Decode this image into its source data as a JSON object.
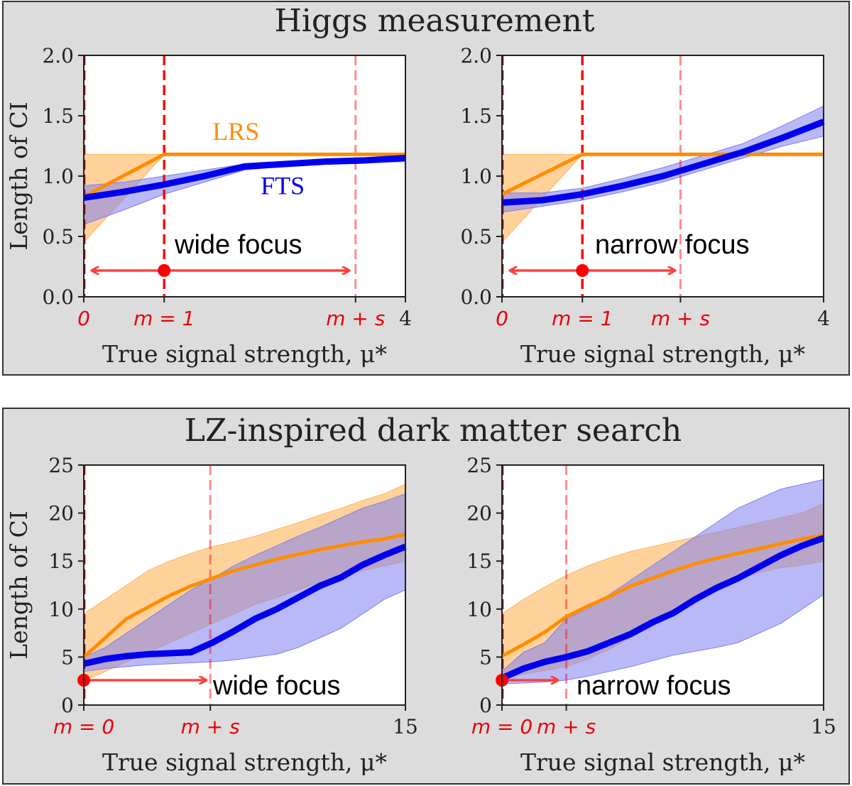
{
  "colors": {
    "lrs": "#ff8c00",
    "lrs_band": "#ffb45a",
    "fts": "#0000ee",
    "fts_band": "#7f7ff0",
    "marker": "#ff0000",
    "focus_line": "#ff0000",
    "arrow": "#ff4040"
  },
  "sections": [
    {
      "title": "Higgs measurement"
    },
    {
      "title": "LZ-inspired dark matter search"
    }
  ],
  "chart_data": [
    {
      "type": "line",
      "section": 0,
      "annotation": "wide focus",
      "xlim": [
        0,
        4
      ],
      "ylim": [
        0,
        2.0
      ],
      "yticks": [
        "0.0",
        "0.5",
        "1.0",
        "1.5",
        "2.0"
      ],
      "ylabel": "Length of CI",
      "xlabel": "True signal strength, μ*",
      "xticks": [
        {
          "x": 0,
          "label": "0",
          "red": true
        },
        {
          "x": 1,
          "label": "m = 1",
          "red": true
        },
        {
          "x": 3.38,
          "label": "m + s",
          "red": true
        },
        {
          "x": 4,
          "label": "4",
          "red": false
        }
      ],
      "focus": {
        "m": 1,
        "m_plus_s": 3.38,
        "arrow_left": 0.05,
        "arrow_right": 3.3
      },
      "series_labels": [
        {
          "name": "LRS",
          "x": 1.6,
          "y": 1.3
        },
        {
          "name": "FTS",
          "x": 2.2,
          "y": 0.85
        }
      ],
      "series": [
        {
          "name": "LRS",
          "x": [
            0,
            1,
            1.5,
            2,
            2.5,
            3,
            3.5,
            4
          ],
          "y": [
            0.83,
            1.18,
            1.18,
            1.18,
            1.18,
            1.18,
            1.18,
            1.18
          ],
          "band_low": [
            0.45,
            1.18,
            1.18,
            1.18,
            1.18,
            1.18,
            1.18,
            1.18
          ],
          "band_high": [
            1.18,
            1.18,
            1.18,
            1.18,
            1.18,
            1.18,
            1.18,
            1.18
          ]
        },
        {
          "name": "FTS",
          "x": [
            0,
            0.5,
            1,
            1.5,
            2,
            2.5,
            3,
            3.5,
            4
          ],
          "y": [
            0.82,
            0.87,
            0.93,
            1.0,
            1.08,
            1.1,
            1.12,
            1.13,
            1.15
          ],
          "band_low": [
            0.6,
            0.72,
            0.85,
            0.95,
            1.05,
            1.08,
            1.1,
            1.11,
            1.12
          ],
          "band_high": [
            0.92,
            0.95,
            1.0,
            1.05,
            1.1,
            1.12,
            1.14,
            1.15,
            1.17
          ]
        }
      ]
    },
    {
      "type": "line",
      "section": 0,
      "annotation": "narrow focus",
      "xlim": [
        0,
        4
      ],
      "ylim": [
        0,
        2.0
      ],
      "yticks": [
        "0.0",
        "0.5",
        "1.0",
        "1.5",
        "2.0"
      ],
      "ylabel": "",
      "xlabel": "True signal strength, μ*",
      "xticks": [
        {
          "x": 0,
          "label": "0",
          "red": true
        },
        {
          "x": 1,
          "label": "m = 1",
          "red": true
        },
        {
          "x": 2.22,
          "label": "m + s",
          "red": true
        },
        {
          "x": 4,
          "label": "4",
          "red": false
        }
      ],
      "focus": {
        "m": 1,
        "m_plus_s": 2.22,
        "arrow_left": 0.05,
        "arrow_right": 2.15
      },
      "series_labels": [],
      "series": [
        {
          "name": "LRS",
          "x": [
            0,
            1,
            1.5,
            2,
            2.5,
            3,
            3.5,
            4
          ],
          "y": [
            0.85,
            1.18,
            1.18,
            1.18,
            1.18,
            1.18,
            1.18,
            1.18
          ],
          "band_low": [
            0.45,
            1.18,
            1.18,
            1.18,
            1.18,
            1.18,
            1.18,
            1.18
          ],
          "band_high": [
            1.18,
            1.18,
            1.18,
            1.18,
            1.18,
            1.18,
            1.18,
            1.18
          ]
        },
        {
          "name": "FTS",
          "x": [
            0,
            0.5,
            1,
            1.5,
            2,
            2.5,
            3,
            3.5,
            4
          ],
          "y": [
            0.78,
            0.8,
            0.85,
            0.92,
            1.0,
            1.1,
            1.2,
            1.32,
            1.45
          ],
          "band_low": [
            0.7,
            0.75,
            0.8,
            0.87,
            0.95,
            1.05,
            1.15,
            1.25,
            1.33
          ],
          "band_high": [
            0.86,
            0.86,
            0.9,
            0.98,
            1.07,
            1.17,
            1.27,
            1.42,
            1.58
          ]
        }
      ]
    },
    {
      "type": "line",
      "section": 1,
      "annotation": "wide focus",
      "xlim": [
        0,
        15
      ],
      "ylim": [
        0,
        25
      ],
      "yticks": [
        "0",
        "5",
        "10",
        "15",
        "20",
        "25"
      ],
      "ylabel": "Length of CI",
      "xlabel": "True signal strength, μ*",
      "xticks": [
        {
          "x": 0,
          "label": "m = 0",
          "red": true
        },
        {
          "x": 5.9,
          "label": "m + s",
          "red": true
        },
        {
          "x": 15,
          "label": "15",
          "red": false
        }
      ],
      "focus": {
        "m": 0,
        "m_plus_s": 5.9,
        "arrow_left": 0,
        "arrow_right": 5.7
      },
      "series_labels": [],
      "series": [
        {
          "name": "LRS",
          "x": [
            0,
            1,
            2,
            3,
            4,
            5,
            6,
            7,
            8,
            9,
            10,
            11,
            12,
            13,
            14,
            15
          ],
          "y": [
            5,
            7,
            9,
            10.2,
            11.4,
            12.4,
            13.2,
            14,
            14.6,
            15.2,
            15.7,
            16.2,
            16.6,
            17,
            17.3,
            17.8
          ],
          "band_low": [
            2.5,
            3.5,
            4.5,
            5.5,
            6.5,
            7.5,
            8.5,
            9.5,
            10.5,
            11.2,
            12,
            12.8,
            13.5,
            14,
            14.5,
            15
          ],
          "band_high": [
            9.5,
            11,
            12.5,
            14,
            15,
            15.8,
            16.5,
            17,
            17.6,
            18.3,
            19,
            19.8,
            20.5,
            21.3,
            22,
            23
          ]
        },
        {
          "name": "FTS",
          "x": [
            0,
            1,
            2,
            3,
            4,
            5,
            6,
            7,
            8,
            9,
            10,
            11,
            12,
            13,
            14,
            15
          ],
          "y": [
            4.3,
            4.8,
            5.1,
            5.3,
            5.4,
            5.5,
            6.5,
            7.7,
            9.0,
            10.0,
            11.2,
            12.4,
            13.3,
            14.6,
            15.6,
            16.5
          ],
          "band_low": [
            3.5,
            3.8,
            4,
            4.2,
            4.3,
            4.4,
            4.5,
            4.7,
            5,
            5.3,
            6,
            7,
            8,
            9.5,
            11,
            12
          ],
          "band_high": [
            5,
            6,
            7.5,
            9,
            10.5,
            12,
            13.2,
            14.5,
            15.6,
            16.6,
            17.6,
            18.5,
            19.5,
            20.5,
            21.2,
            22
          ]
        }
      ]
    },
    {
      "type": "line",
      "section": 1,
      "annotation": "narrow focus",
      "xlim": [
        0,
        15
      ],
      "ylim": [
        0,
        25
      ],
      "yticks": [
        "0",
        "5",
        "10",
        "15",
        "20",
        "25"
      ],
      "ylabel": "",
      "xlabel": "True signal strength, μ*",
      "xticks": [
        {
          "x": 0,
          "label": "m = 0",
          "red": true
        },
        {
          "x": 3,
          "label": "m + s",
          "red": true
        },
        {
          "x": 15,
          "label": "15",
          "red": false
        }
      ],
      "focus": {
        "m": 0,
        "m_plus_s": 3,
        "arrow_left": 0,
        "arrow_right": 2.6
      },
      "series_labels": [],
      "series": [
        {
          "name": "LRS",
          "x": [
            0,
            1,
            2,
            3,
            4,
            5,
            6,
            7,
            8,
            9,
            10,
            11,
            12,
            13,
            14,
            15
          ],
          "y": [
            5.1,
            6.3,
            7.6,
            9.2,
            10.3,
            11.3,
            12.4,
            13.2,
            14,
            14.7,
            15.3,
            15.8,
            16.3,
            16.8,
            17.3,
            17.7
          ],
          "band_low": [
            2.8,
            3.2,
            3.6,
            4,
            4.8,
            5.8,
            7,
            8.2,
            9.5,
            10.8,
            12,
            13,
            13.8,
            14.3,
            14.6,
            15
          ],
          "band_high": [
            9.5,
            11,
            12.3,
            13.5,
            14.5,
            15.3,
            16,
            16.5,
            17,
            17.5,
            18,
            18.5,
            19,
            19.5,
            20,
            21
          ]
        },
        {
          "name": "FTS",
          "x": [
            0,
            1,
            2,
            3,
            4,
            5,
            6,
            7,
            8,
            9,
            10,
            11,
            12,
            13,
            14,
            15
          ],
          "y": [
            2.8,
            3.8,
            4.5,
            5.0,
            5.6,
            6.5,
            7.4,
            8.6,
            9.6,
            11.0,
            12.2,
            13.2,
            14.4,
            15.6,
            16.6,
            17.4
          ],
          "band_low": [
            2.2,
            2.3,
            2.4,
            2.6,
            3,
            3.5,
            4,
            4.6,
            5.2,
            5.6,
            6,
            6.5,
            7.5,
            8.5,
            10,
            11.5
          ],
          "band_high": [
            3.5,
            5.5,
            6.5,
            9,
            10,
            11.5,
            13,
            14.5,
            16,
            17.5,
            19,
            20.5,
            21.5,
            22.5,
            23,
            23.5
          ]
        }
      ]
    }
  ]
}
